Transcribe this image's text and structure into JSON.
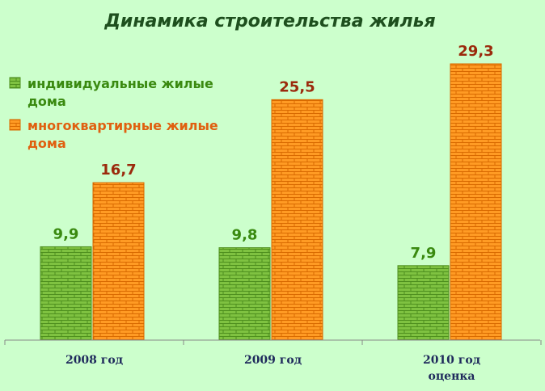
{
  "colors": {
    "background": "#ccffcc",
    "individual_fill": "#7fc241",
    "individual_line": "#4e8f1e",
    "individual_text": "#3a8a10",
    "multi_fill": "#ff9b24",
    "multi_line": "#d96a00",
    "multi_text": "#9b2a0c",
    "legend_multi_text": "#e06010",
    "title": "#1e4f1e",
    "axis": "#888888",
    "tick_text": "#1f2a5c"
  },
  "chart_data": {
    "type": "bar",
    "title": "Динамика строительства жилья",
    "xlabel": "",
    "ylabel": "",
    "categories": [
      [
        "2008 год"
      ],
      [
        "2009 год"
      ],
      [
        "2010 год",
        "оценка"
      ]
    ],
    "series": [
      {
        "name": "индивидуальные жилые дома",
        "legend_lines": [
          "индивидуальные жилые",
          "дома"
        ],
        "values": [
          9.9,
          9.8,
          7.9
        ],
        "labels": [
          "9,9",
          "9,8",
          "7,9"
        ]
      },
      {
        "name": "многоквартирные жилые дома",
        "legend_lines": [
          "многоквартирные жилые",
          "дома"
        ],
        "values": [
          16.7,
          25.5,
          29.3
        ],
        "labels": [
          "16,7",
          "25,5",
          "29,3"
        ]
      }
    ],
    "ylim": [
      0,
      30
    ],
    "grid": false,
    "legend": "top-left"
  }
}
